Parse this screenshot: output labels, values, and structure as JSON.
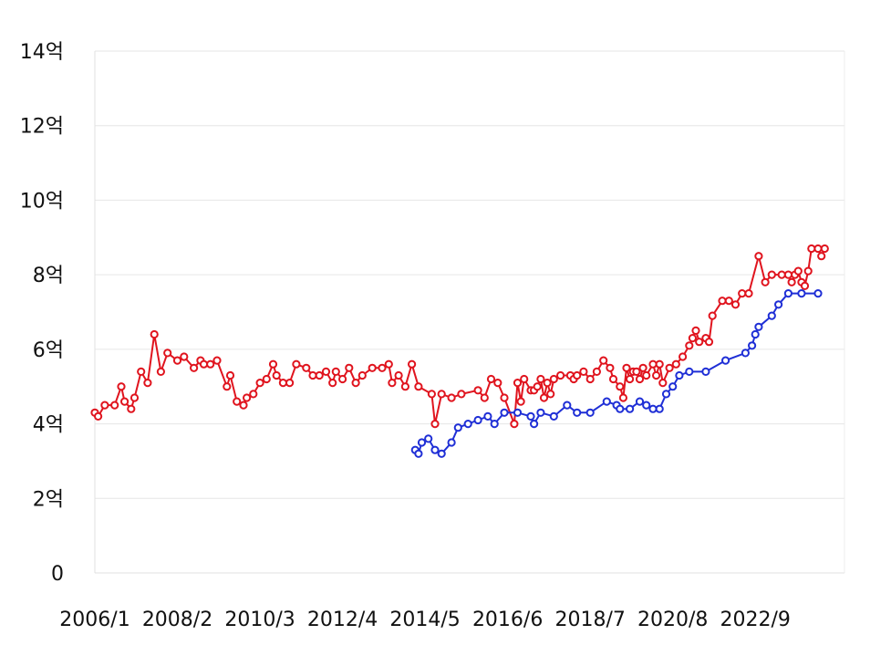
{
  "chart_data": {
    "type": "line",
    "title": "",
    "xlabel": "",
    "ylabel": "",
    "x_range": [
      "2006-01",
      "2024-12"
    ],
    "ylim": [
      0,
      14
    ],
    "grid": "horizontal",
    "y_ticks": [
      {
        "value": 0,
        "label": "0"
      },
      {
        "value": 2,
        "label": "2억"
      },
      {
        "value": 4,
        "label": "4억"
      },
      {
        "value": 6,
        "label": "6억"
      },
      {
        "value": 8,
        "label": "8억"
      },
      {
        "value": 10,
        "label": "10억"
      },
      {
        "value": 12,
        "label": "12억"
      },
      {
        "value": 14,
        "label": "14억"
      }
    ],
    "x_ticks": [
      "2006/1",
      "2008/2",
      "2010/3",
      "2012/4",
      "2014/5",
      "2016/6",
      "2018/7",
      "2020/8",
      "2022/9"
    ],
    "series": [
      {
        "color": "#e0141e",
        "points": [
          [
            "2006-01",
            4.3
          ],
          [
            "2006-02",
            4.2
          ],
          [
            "2006-04",
            4.5
          ],
          [
            "2006-07",
            4.5
          ],
          [
            "2006-09",
            5.0
          ],
          [
            "2006-10",
            4.6
          ],
          [
            "2006-12",
            4.4
          ],
          [
            "2007-01",
            4.7
          ],
          [
            "2007-03",
            5.4
          ],
          [
            "2007-05",
            5.1
          ],
          [
            "2007-07",
            6.4
          ],
          [
            "2007-09",
            5.4
          ],
          [
            "2007-11",
            5.9
          ],
          [
            "2008-02",
            5.7
          ],
          [
            "2008-04",
            5.8
          ],
          [
            "2008-07",
            5.5
          ],
          [
            "2008-09",
            5.7
          ],
          [
            "2008-10",
            5.6
          ],
          [
            "2008-12",
            5.6
          ],
          [
            "2009-02",
            5.7
          ],
          [
            "2009-05",
            5.0
          ],
          [
            "2009-06",
            5.3
          ],
          [
            "2009-08",
            4.6
          ],
          [
            "2009-10",
            4.5
          ],
          [
            "2009-11",
            4.7
          ],
          [
            "2010-01",
            4.8
          ],
          [
            "2010-03",
            5.1
          ],
          [
            "2010-05",
            5.2
          ],
          [
            "2010-07",
            5.6
          ],
          [
            "2010-08",
            5.3
          ],
          [
            "2010-10",
            5.1
          ],
          [
            "2010-12",
            5.1
          ],
          [
            "2011-02",
            5.6
          ],
          [
            "2011-05",
            5.5
          ],
          [
            "2011-07",
            5.3
          ],
          [
            "2011-09",
            5.3
          ],
          [
            "2011-11",
            5.4
          ],
          [
            "2012-01",
            5.1
          ],
          [
            "2012-02",
            5.4
          ],
          [
            "2012-04",
            5.2
          ],
          [
            "2012-06",
            5.5
          ],
          [
            "2012-08",
            5.1
          ],
          [
            "2012-10",
            5.3
          ],
          [
            "2013-01",
            5.5
          ],
          [
            "2013-04",
            5.5
          ],
          [
            "2013-06",
            5.6
          ],
          [
            "2013-07",
            5.1
          ],
          [
            "2013-09",
            5.3
          ],
          [
            "2013-11",
            5.0
          ],
          [
            "2014-01",
            5.6
          ],
          [
            "2014-03",
            5.0
          ],
          [
            "2014-07",
            4.8
          ],
          [
            "2014-08",
            4.0
          ],
          [
            "2014-10",
            4.8
          ],
          [
            "2015-01",
            4.7
          ],
          [
            "2015-04",
            4.8
          ],
          [
            "2015-09",
            4.9
          ],
          [
            "2015-11",
            4.7
          ],
          [
            "2016-01",
            5.2
          ],
          [
            "2016-03",
            5.1
          ],
          [
            "2016-05",
            4.7
          ],
          [
            "2016-08",
            4.0
          ],
          [
            "2016-09",
            5.1
          ],
          [
            "2016-10",
            4.6
          ],
          [
            "2016-11",
            5.2
          ],
          [
            "2017-01",
            4.9
          ],
          [
            "2017-02",
            4.9
          ],
          [
            "2017-03",
            5.0
          ],
          [
            "2017-04",
            5.2
          ],
          [
            "2017-05",
            4.7
          ],
          [
            "2017-06",
            5.1
          ],
          [
            "2017-07",
            4.8
          ],
          [
            "2017-08",
            5.2
          ],
          [
            "2017-10",
            5.3
          ],
          [
            "2018-01",
            5.3
          ],
          [
            "2018-02",
            5.2
          ],
          [
            "2018-03",
            5.3
          ],
          [
            "2018-05",
            5.4
          ],
          [
            "2018-07",
            5.2
          ],
          [
            "2018-09",
            5.4
          ],
          [
            "2018-11",
            5.7
          ],
          [
            "2019-01",
            5.5
          ],
          [
            "2019-02",
            5.2
          ],
          [
            "2019-04",
            5.0
          ],
          [
            "2019-05",
            4.7
          ],
          [
            "2019-06",
            5.5
          ],
          [
            "2019-07",
            5.2
          ],
          [
            "2019-08",
            5.4
          ],
          [
            "2019-09",
            5.4
          ],
          [
            "2019-10",
            5.2
          ],
          [
            "2019-11",
            5.5
          ],
          [
            "2019-12",
            5.3
          ],
          [
            "2020-02",
            5.6
          ],
          [
            "2020-03",
            5.3
          ],
          [
            "2020-04",
            5.6
          ],
          [
            "2020-05",
            5.1
          ],
          [
            "2020-07",
            5.5
          ],
          [
            "2020-09",
            5.6
          ],
          [
            "2020-11",
            5.8
          ],
          [
            "2021-01",
            6.1
          ],
          [
            "2021-02",
            6.3
          ],
          [
            "2021-03",
            6.5
          ],
          [
            "2021-04",
            6.2
          ],
          [
            "2021-06",
            6.3
          ],
          [
            "2021-07",
            6.2
          ],
          [
            "2021-08",
            6.9
          ],
          [
            "2021-11",
            7.3
          ],
          [
            "2022-01",
            7.3
          ],
          [
            "2022-03",
            7.2
          ],
          [
            "2022-05",
            7.5
          ],
          [
            "2022-07",
            7.5
          ],
          [
            "2022-10",
            8.5
          ],
          [
            "2022-12",
            7.8
          ],
          [
            "2023-02",
            8.0
          ],
          [
            "2023-05",
            8.0
          ],
          [
            "2023-07",
            8.0
          ],
          [
            "2023-08",
            7.8
          ],
          [
            "2023-09",
            8.0
          ],
          [
            "2023-10",
            8.1
          ],
          [
            "2023-11",
            7.8
          ],
          [
            "2023-12",
            7.7
          ],
          [
            "2024-01",
            8.1
          ],
          [
            "2024-02",
            8.7
          ],
          [
            "2024-04",
            8.7
          ],
          [
            "2024-05",
            8.5
          ],
          [
            "2024-06",
            8.7
          ]
        ]
      },
      {
        "color": "#1f2fd6",
        "points": [
          [
            "2014-02",
            3.3
          ],
          [
            "2014-03",
            3.2
          ],
          [
            "2014-04",
            3.5
          ],
          [
            "2014-06",
            3.6
          ],
          [
            "2014-08",
            3.3
          ],
          [
            "2014-10",
            3.2
          ],
          [
            "2015-01",
            3.5
          ],
          [
            "2015-03",
            3.9
          ],
          [
            "2015-06",
            4.0
          ],
          [
            "2015-09",
            4.1
          ],
          [
            "2015-12",
            4.2
          ],
          [
            "2016-02",
            4.0
          ],
          [
            "2016-05",
            4.3
          ],
          [
            "2016-09",
            4.3
          ],
          [
            "2017-01",
            4.2
          ],
          [
            "2017-02",
            4.0
          ],
          [
            "2017-04",
            4.3
          ],
          [
            "2017-08",
            4.2
          ],
          [
            "2017-12",
            4.5
          ],
          [
            "2018-03",
            4.3
          ],
          [
            "2018-07",
            4.3
          ],
          [
            "2018-12",
            4.6
          ],
          [
            "2019-03",
            4.5
          ],
          [
            "2019-04",
            4.4
          ],
          [
            "2019-07",
            4.4
          ],
          [
            "2019-10",
            4.6
          ],
          [
            "2019-12",
            4.5
          ],
          [
            "2020-02",
            4.4
          ],
          [
            "2020-04",
            4.4
          ],
          [
            "2020-06",
            4.8
          ],
          [
            "2020-08",
            5.0
          ],
          [
            "2020-10",
            5.3
          ],
          [
            "2021-01",
            5.4
          ],
          [
            "2021-06",
            5.4
          ],
          [
            "2021-12",
            5.7
          ],
          [
            "2022-06",
            5.9
          ],
          [
            "2022-08",
            6.1
          ],
          [
            "2022-09",
            6.4
          ],
          [
            "2022-10",
            6.6
          ],
          [
            "2023-02",
            6.9
          ],
          [
            "2023-04",
            7.2
          ],
          [
            "2023-07",
            7.5
          ],
          [
            "2023-11",
            7.5
          ],
          [
            "2024-04",
            7.5
          ]
        ]
      }
    ]
  }
}
